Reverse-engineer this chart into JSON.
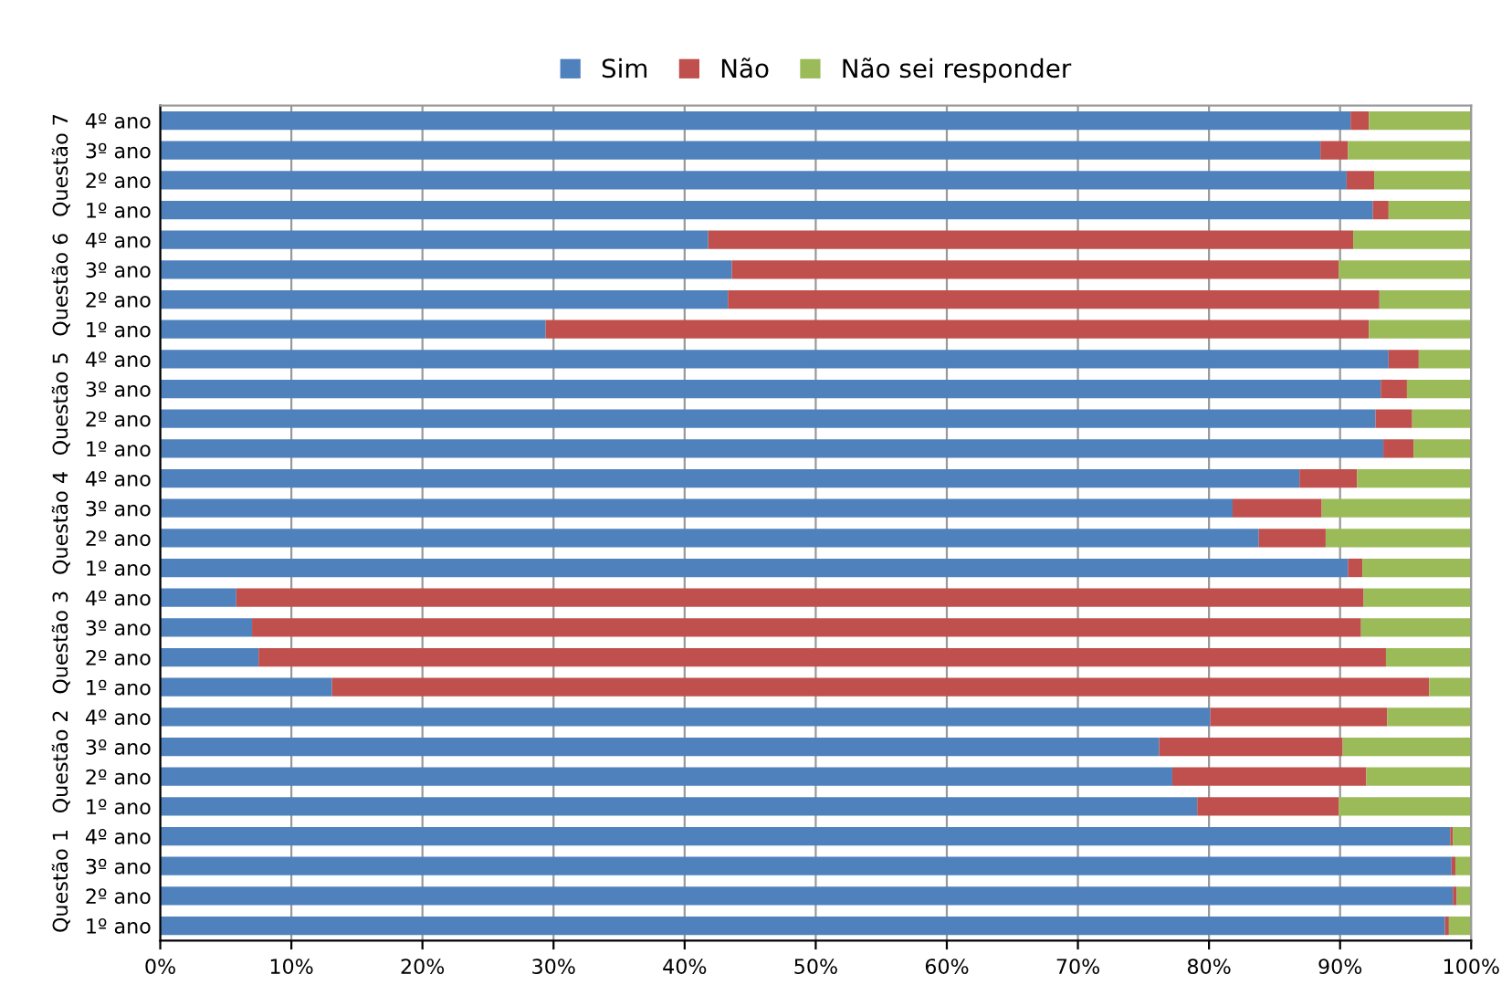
{
  "chart_data": {
    "type": "bar",
    "orientation": "horizontal",
    "stacked": true,
    "categories": [
      "4º ano",
      "3º ano",
      "2º ano",
      "1º ano",
      "4º ano",
      "3º ano",
      "2º ano",
      "1º ano",
      "4º ano",
      "3º ano",
      "2º ano",
      "1º ano",
      "4º ano",
      "3º ano",
      "2º ano",
      "1º ano",
      "4º ano",
      "3º ano",
      "2º ano",
      "1º ano",
      "4º ano",
      "3º ano",
      "2º ano",
      "1º ano",
      "4º ano",
      "3º ano",
      "2º ano",
      "1º ano"
    ],
    "series": [
      {
        "name": "Sim",
        "color": "#4f81bd",
        "values": [
          90.8,
          88.5,
          90.5,
          92.5,
          41.8,
          43.6,
          43.3,
          29.4,
          93.7,
          93.1,
          92.7,
          93.3,
          86.9,
          81.8,
          83.8,
          90.6,
          5.8,
          7.0,
          7.5,
          13.1,
          80.1,
          76.2,
          77.2,
          79.1,
          98.4,
          98.5,
          98.6,
          98.0
        ]
      },
      {
        "name": "Não",
        "color": "#c0504d",
        "values": [
          1.4,
          2.1,
          2.1,
          1.2,
          49.2,
          46.3,
          49.7,
          62.8,
          2.3,
          2.0,
          2.8,
          2.3,
          4.4,
          6.8,
          5.1,
          1.1,
          86.0,
          84.6,
          86.0,
          83.7,
          13.5,
          14.0,
          14.8,
          10.8,
          0.2,
          0.3,
          0.3,
          0.3
        ]
      },
      {
        "name": "Não sei responder",
        "color": "#9bbb59",
        "values": [
          7.8,
          9.4,
          7.4,
          6.3,
          9.0,
          10.1,
          7.0,
          7.8,
          4.0,
          4.9,
          4.5,
          4.4,
          8.7,
          11.4,
          11.1,
          8.3,
          8.2,
          8.4,
          6.5,
          3.2,
          6.4,
          9.8,
          8.0,
          10.1,
          1.4,
          1.2,
          1.1,
          1.7
        ]
      }
    ],
    "annotations": [
      "Questão 7",
      "Questão 6",
      "Questão 5",
      "Questão 4",
      "Questão 3",
      "Questão 2",
      "Questão 1"
    ],
    "xlim": [
      0,
      100
    ],
    "xticks": [
      {
        "value": 0,
        "label": "0%"
      },
      {
        "value": 10,
        "label": "10%"
      },
      {
        "value": 20,
        "label": "20%"
      },
      {
        "value": 30,
        "label": "30%"
      },
      {
        "value": 40,
        "label": "40%"
      },
      {
        "value": 50,
        "label": "50%"
      },
      {
        "value": 60,
        "label": "60%"
      },
      {
        "value": 70,
        "label": "70%"
      },
      {
        "value": 80,
        "label": "80%"
      },
      {
        "value": 90,
        "label": "90%"
      },
      {
        "value": 100,
        "label": "100%"
      }
    ],
    "grid": "x",
    "legend": "top"
  }
}
